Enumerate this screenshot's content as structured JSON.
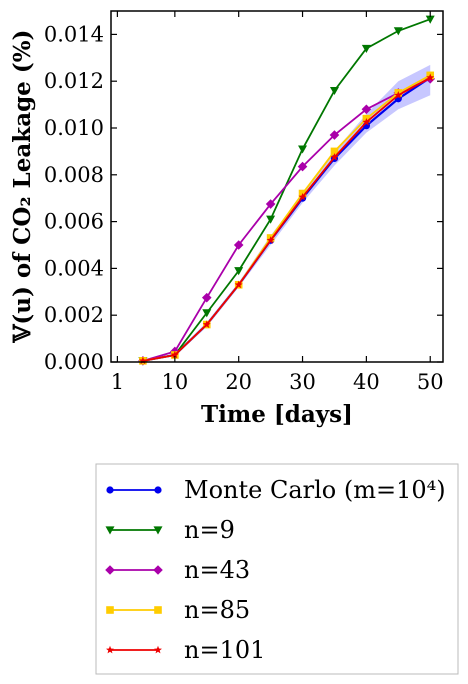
{
  "chart_data": {
    "type": "line",
    "xlabel": "Time [days]",
    "ylabel": "𝕍(u) of CO₂ Leakage (%)",
    "xlim": [
      0,
      52
    ],
    "ylim": [
      0,
      0.015
    ],
    "xticks": [
      1,
      10,
      20,
      30,
      40,
      50
    ],
    "yticks": [
      0.0,
      0.002,
      0.004,
      0.006,
      0.008,
      0.01,
      0.012,
      0.014
    ],
    "ytick_labels": [
      "0.000",
      "0.002",
      "0.004",
      "0.006",
      "0.008",
      "0.010",
      "0.012",
      "0.014"
    ],
    "x": [
      5,
      10,
      15,
      20,
      25,
      30,
      35,
      40,
      45,
      50
    ],
    "band": {
      "color": "#9999ff",
      "lower": [
        3e-05,
        0.00025,
        0.0015,
        0.0032,
        0.005,
        0.0068,
        0.0084,
        0.0098,
        0.0108,
        0.0114
      ],
      "upper": [
        7e-05,
        0.00035,
        0.0017,
        0.0034,
        0.0054,
        0.0072,
        0.009,
        0.0106,
        0.012,
        0.0127
      ]
    },
    "legend_position": "below plot",
    "series": [
      {
        "name": "Monte Carlo (m=10⁴)",
        "color": "#0000ee",
        "marker": "circle",
        "values": [
          5e-05,
          0.0003,
          0.0016,
          0.0033,
          0.0052,
          0.007,
          0.0087,
          0.0101,
          0.01125,
          0.01215
        ]
      },
      {
        "name": "n=9",
        "color": "#007700",
        "marker": "triangle-down",
        "values": [
          5e-05,
          0.0003,
          0.0021,
          0.0039,
          0.0061,
          0.0091,
          0.0116,
          0.0134,
          0.01415,
          0.01465
        ]
      },
      {
        "name": "n=43",
        "color": "#aa00aa",
        "marker": "diamond",
        "values": [
          5e-05,
          0.00045,
          0.00275,
          0.005,
          0.00675,
          0.00835,
          0.0097,
          0.0108,
          0.0115,
          0.0121
        ]
      },
      {
        "name": "n=85",
        "color": "#ffcc00",
        "marker": "square",
        "values": [
          5e-05,
          0.0003,
          0.0016,
          0.0033,
          0.0053,
          0.0072,
          0.009,
          0.0104,
          0.0115,
          0.01225
        ]
      },
      {
        "name": "n=101",
        "color": "#ee0000",
        "marker": "star",
        "values": [
          5e-05,
          0.0003,
          0.0016,
          0.0033,
          0.0052,
          0.00705,
          0.00875,
          0.01025,
          0.0114,
          0.01215
        ]
      }
    ]
  }
}
